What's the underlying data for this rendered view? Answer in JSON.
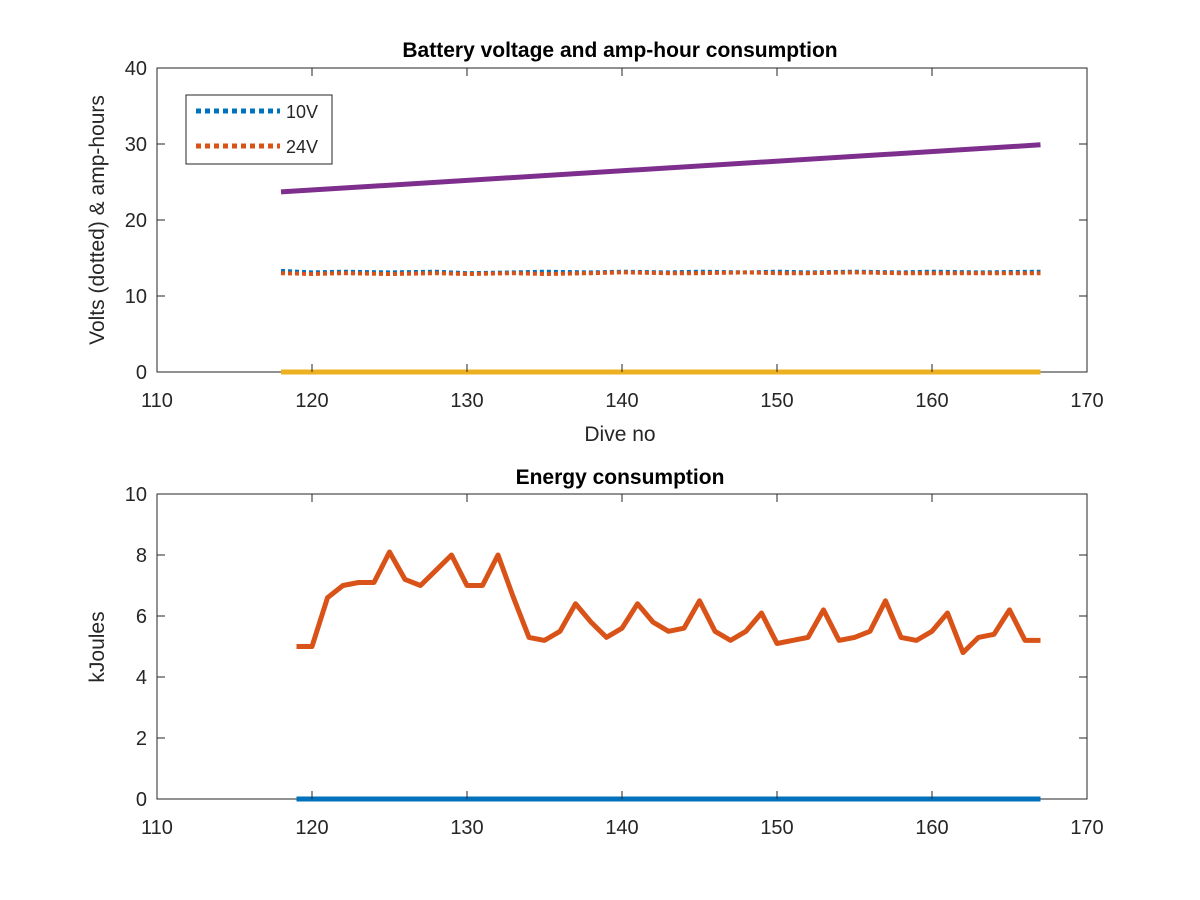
{
  "chart_data": [
    {
      "type": "line",
      "title": "Battery voltage and amp-hour consumption",
      "xlabel": "Dive no",
      "ylabel": "Volts (dotted) & amp-hours",
      "xlim": [
        110,
        170
      ],
      "ylim": [
        0,
        40
      ],
      "xticks": [
        110,
        120,
        130,
        140,
        150,
        160,
        170
      ],
      "yticks": [
        0,
        10,
        20,
        30,
        40
      ],
      "grid": false,
      "legend_position": "top-left",
      "series": [
        {
          "name": "10V",
          "color": "#0072BD",
          "style": "dotted",
          "x": [
            118,
            120,
            122,
            125,
            128,
            130,
            133,
            135,
            138,
            140,
            143,
            145,
            148,
            150,
            152,
            155,
            158,
            160,
            163,
            167
          ],
          "y": [
            13.3,
            13.1,
            13.2,
            13.1,
            13.2,
            13.0,
            13.1,
            13.2,
            13.1,
            13.2,
            13.1,
            13.2,
            13.1,
            13.2,
            13.1,
            13.2,
            13.1,
            13.2,
            13.1,
            13.2
          ]
        },
        {
          "name": "24V",
          "color": "#D95319",
          "style": "dotted",
          "x": [
            118,
            120,
            122,
            125,
            128,
            130,
            133,
            135,
            138,
            140,
            143,
            145,
            148,
            150,
            152,
            155,
            158,
            160,
            163,
            167
          ],
          "y": [
            13.0,
            12.9,
            13.0,
            12.9,
            13.0,
            12.9,
            13.0,
            12.9,
            13.0,
            13.1,
            13.0,
            13.0,
            13.1,
            13.0,
            13.0,
            13.1,
            13.0,
            13.0,
            13.0,
            13.0
          ]
        },
        {
          "color": "#EDB120",
          "style": "solid",
          "x": [
            118,
            167
          ],
          "y": [
            0,
            0
          ]
        },
        {
          "color": "#7E2F8E",
          "style": "solid",
          "x": [
            118,
            167
          ],
          "y": [
            23.7,
            29.9
          ]
        }
      ]
    },
    {
      "type": "line",
      "title": "Energy consumption",
      "xlabel": "",
      "ylabel": "kJoules",
      "xlim": [
        110,
        170
      ],
      "ylim": [
        0,
        10
      ],
      "xticks": [
        110,
        120,
        130,
        140,
        150,
        160,
        170
      ],
      "yticks": [
        0,
        2,
        4,
        6,
        8,
        10
      ],
      "grid": false,
      "series": [
        {
          "color": "#D95319",
          "style": "solid",
          "x": [
            119,
            120,
            121,
            122,
            123,
            124,
            125,
            126,
            127,
            128,
            129,
            130,
            131,
            132,
            133,
            134,
            135,
            136,
            137,
            138,
            139,
            140,
            141,
            142,
            143,
            144,
            145,
            146,
            147,
            148,
            149,
            150,
            151,
            152,
            153,
            154,
            155,
            156,
            157,
            158,
            159,
            160,
            161,
            162,
            163,
            164,
            165,
            166,
            167
          ],
          "y": [
            5.0,
            5.0,
            6.6,
            7.0,
            7.1,
            7.1,
            8.1,
            7.2,
            7.0,
            7.5,
            8.0,
            7.0,
            7.0,
            8.0,
            6.6,
            5.3,
            5.2,
            5.5,
            6.4,
            5.8,
            5.3,
            5.6,
            6.4,
            5.8,
            5.5,
            5.6,
            6.5,
            5.5,
            5.2,
            5.5,
            6.1,
            5.1,
            5.2,
            5.3,
            6.2,
            5.2,
            5.3,
            5.5,
            6.5,
            5.3,
            5.2,
            5.5,
            6.1,
            4.8,
            5.3,
            5.4,
            6.2,
            5.2,
            5.2
          ]
        },
        {
          "color": "#0072BD",
          "style": "solid",
          "x": [
            119,
            167
          ],
          "y": [
            0,
            0
          ]
        }
      ]
    }
  ]
}
